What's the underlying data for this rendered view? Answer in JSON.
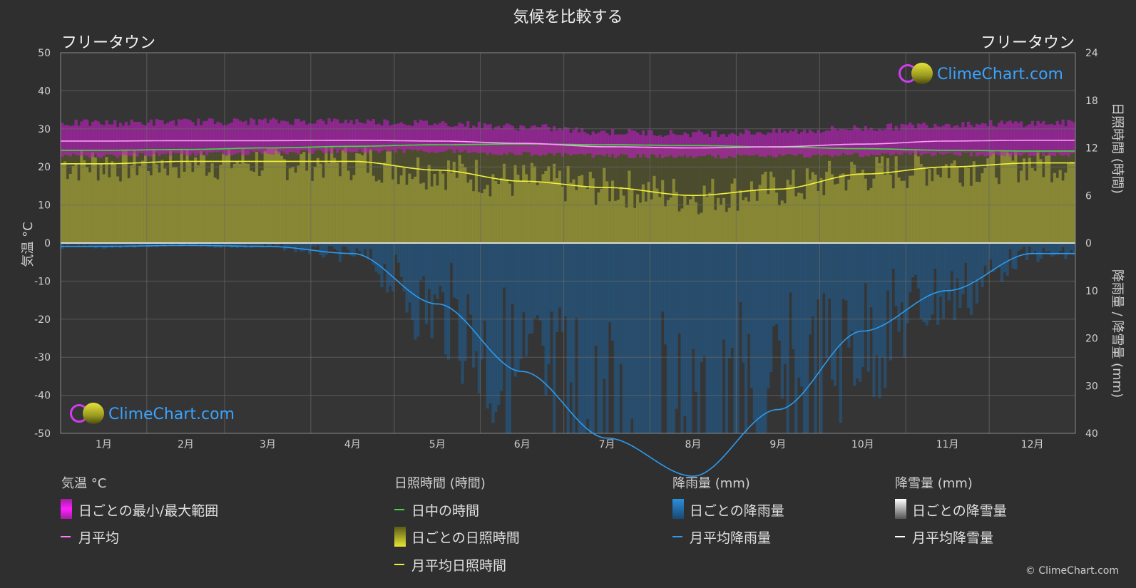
{
  "title": "気候を比較する",
  "city_left": "フリータウン",
  "city_right": "フリータウン",
  "brand": "ClimeChart.com",
  "copyright": "© ClimeChart.com",
  "axes": {
    "left_label": "気温 °C",
    "right_top_label": "日照時間 (時間)",
    "right_bottom_label": "降雨量 / 降雪量 (mm)"
  },
  "legend": {
    "groups": [
      {
        "heading": "気温 °C",
        "items": [
          {
            "label": "日ごとの最小/最大範囲",
            "swatch": "box",
            "color": "#e020e0"
          },
          {
            "label": "月平均",
            "swatch": "line",
            "color": "#ff7bff"
          }
        ]
      },
      {
        "heading": "日照時間 (時間)",
        "items": [
          {
            "label": "日中の時間",
            "swatch": "line",
            "color": "#3ddc3d"
          },
          {
            "label": "日ごとの日照時間",
            "swatch": "box",
            "color": "#e6e632"
          },
          {
            "label": "月平均日照時間",
            "swatch": "line",
            "color": "#f2f23a"
          }
        ]
      },
      {
        "heading": "降雨量 (mm)",
        "items": [
          {
            "label": "日ごとの降雨量",
            "swatch": "box",
            "color": "#2a8fe0"
          },
          {
            "label": "月平均降雨量",
            "swatch": "line",
            "color": "#2a9bf0"
          }
        ]
      },
      {
        "heading": "降雪量 (mm)",
        "items": [
          {
            "label": "日ごとの降雪量",
            "swatch": "box",
            "color": "#dddddd"
          },
          {
            "label": "月平均降雪量",
            "swatch": "line",
            "color": "#ffffff"
          }
        ]
      }
    ]
  },
  "chart_data": {
    "type": "area",
    "categories": [
      "1月",
      "2月",
      "3月",
      "4月",
      "5月",
      "6月",
      "7月",
      "8月",
      "9月",
      "10月",
      "11月",
      "12月"
    ],
    "temp_axis": {
      "ylim": [
        -50,
        50
      ],
      "ticks": [
        50,
        40,
        30,
        20,
        10,
        0,
        -10,
        -20,
        -30,
        -40,
        -50
      ]
    },
    "sun_axis": {
      "ylim": [
        0,
        24
      ],
      "ticks": [
        24,
        18,
        12,
        6,
        0
      ]
    },
    "precip_axis": {
      "ylim": [
        0,
        40
      ],
      "ticks": [
        0,
        10,
        20,
        30,
        40
      ]
    },
    "series": [
      {
        "name": "月平均",
        "axis": "temp",
        "values": [
          26.8,
          26.9,
          26.9,
          27.0,
          26.8,
          26.2,
          25.3,
          25.0,
          25.3,
          26.0,
          26.8,
          27.0
        ]
      },
      {
        "name": "日中の時間",
        "axis": "sun",
        "values": [
          11.7,
          11.8,
          12.0,
          12.2,
          12.4,
          12.5,
          12.4,
          12.3,
          12.1,
          11.9,
          11.7,
          11.6
        ]
      },
      {
        "name": "月平均日照時間",
        "axis": "sun",
        "values": [
          10.0,
          10.3,
          10.3,
          10.3,
          9.2,
          7.8,
          7.0,
          6.0,
          6.8,
          8.7,
          9.6,
          10.1
        ]
      },
      {
        "name": "月平均降雨量",
        "axis": "precip",
        "values": [
          0.7,
          0.5,
          0.7,
          2.2,
          12.8,
          27.0,
          41.0,
          49.0,
          35.0,
          18.5,
          10.0,
          2.2
        ]
      }
    ],
    "temp_range": {
      "min": [
        23.5,
        24.0,
        24.3,
        24.8,
        24.8,
        24.0,
        23.5,
        23.3,
        23.5,
        23.8,
        24.0,
        23.8
      ],
      "max": [
        30.5,
        30.8,
        31.0,
        31.0,
        30.5,
        29.5,
        28.2,
        27.8,
        28.2,
        29.2,
        30.3,
        30.5
      ]
    }
  }
}
